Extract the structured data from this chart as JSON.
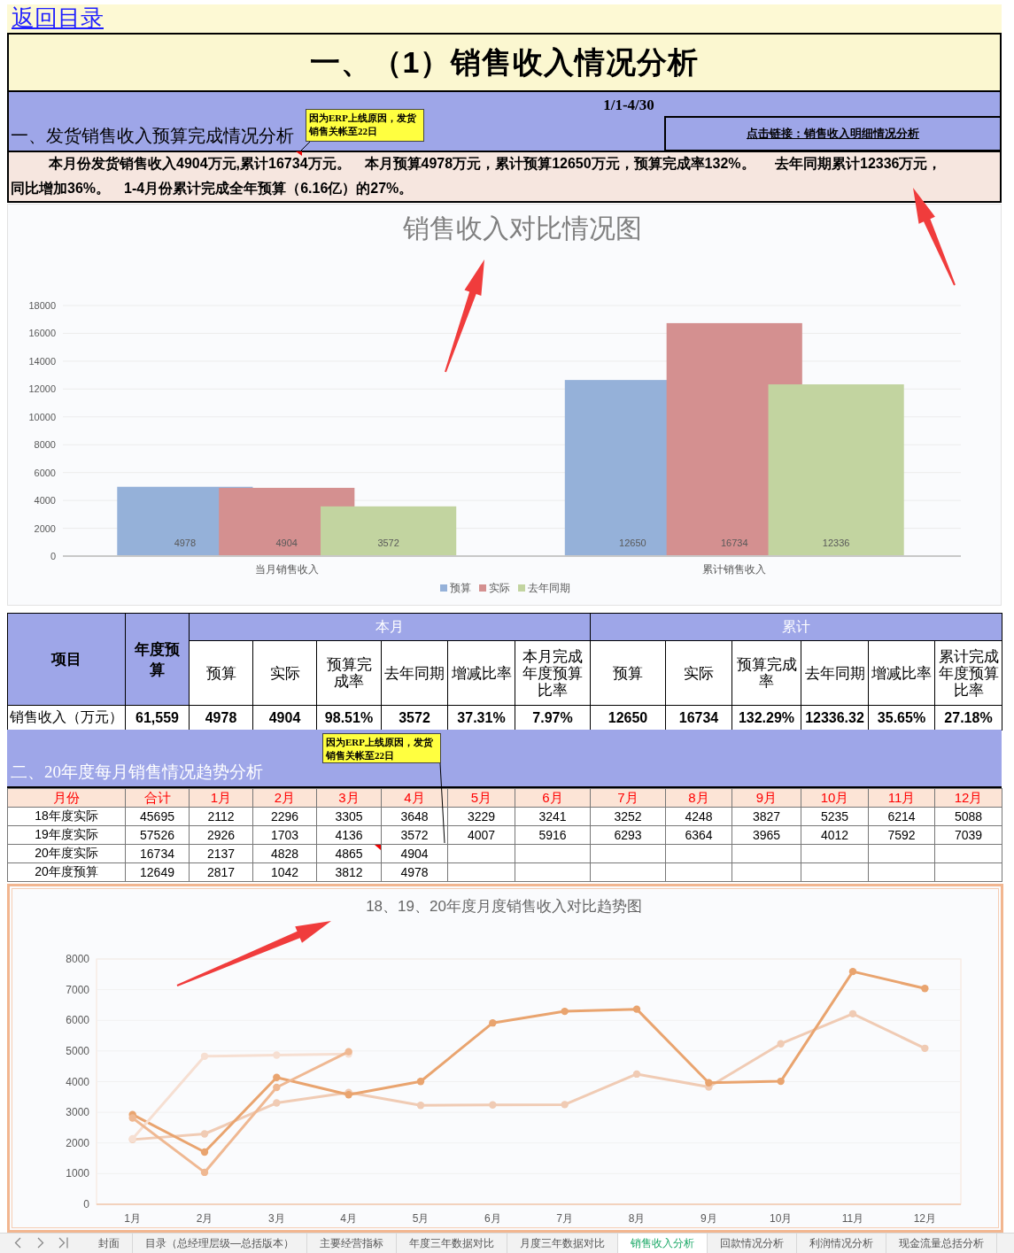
{
  "chart_data": [
    {
      "type": "other",
      "title": "一、（1）销售收入情况分析",
      "annotations": [
        "返回目录",
        "1/1-4/30",
        "一、发货销售收入预算完成情况分析",
        "点击链接：销售收入明细情况分析",
        "本月份发货销售收入4904万元,累计16734万元。　本月预算4978万元，累计预算12650万元，预算完成率132%。 去年同期累计12336万元，同比增加36%。　1-4月份累计完成全年预算（6.16亿）的27%。",
        "因为ERP上线原因，发货销售关帐至22日"
      ]
    },
    {
      "type": "bar",
      "title": "销售收入对比情况图",
      "categories": [
        "当月销售收入",
        "累计销售收入"
      ],
      "series": [
        {
          "name": "预算",
          "color": "#95b1d9",
          "values": [
            4978,
            12650
          ],
          "value_labels": [
            "4978",
            "12650"
          ]
        },
        {
          "name": "实际",
          "color": "#d49090",
          "values": [
            4904,
            16734
          ],
          "value_labels": [
            "4904",
            "16734"
          ]
        },
        {
          "name": "去年同期",
          "color": "#c2d4a0",
          "values": [
            3572,
            12336
          ],
          "value_labels": [
            "3572",
            "12336"
          ]
        }
      ],
      "ylim": [
        0,
        18000
      ],
      "yticks": [
        0,
        2000,
        4000,
        6000,
        8000,
        10000,
        12000,
        14000,
        16000,
        18000
      ],
      "grid": "y",
      "legend": "bottom"
    },
    {
      "type": "other",
      "categories": [
        "年度预算",
        "预算",
        "实际",
        "预算完成率",
        "去年同期",
        "增减比率",
        "本月完成年度预算比率",
        "预算",
        "实际",
        "预算完成率",
        "去年同期",
        "增减比率",
        "累计完成年度预算比率"
      ],
      "series": [
        {
          "name": "销售收入（万元）",
          "values": [
            61559,
            4978,
            4904,
            98.51,
            3572,
            37.31,
            7.97,
            12650,
            16734,
            132.29,
            12336.32,
            35.65,
            27.18
          ],
          "value_labels": [
            "61,559",
            "4978",
            "4904",
            "98.51%",
            "3572",
            "37.31%",
            "7.97%",
            "12650",
            "16734",
            "132.29%",
            "12336.32",
            "35.65%",
            "27.18%"
          ]
        }
      ],
      "annotations": [
        "项目",
        "本月",
        "累计"
      ]
    },
    {
      "type": "other",
      "title": "二、20年度每月销售情况趋势分析",
      "xlabel": "月份",
      "categories": [
        "合计",
        "1月",
        "2月",
        "3月",
        "4月",
        "5月",
        "6月",
        "7月",
        "8月",
        "9月",
        "10月",
        "11月",
        "12月"
      ],
      "series": [
        {
          "name": "18年度实际",
          "values": [
            45695,
            2112,
            2296,
            3305,
            3648,
            3229,
            3241,
            3252,
            4248,
            3827,
            5235,
            6214,
            5088
          ]
        },
        {
          "name": "19年度实际",
          "values": [
            57526,
            2926,
            1703,
            4136,
            3572,
            4007,
            5916,
            6293,
            6364,
            3965,
            4012,
            7592,
            7039
          ]
        },
        {
          "name": "20年度实际",
          "values": [
            16734,
            2137,
            4828,
            4865,
            4904,
            null,
            null,
            null,
            null,
            null,
            null,
            null,
            null
          ]
        },
        {
          "name": "20年度预算",
          "values": [
            12649,
            2817,
            1042,
            3812,
            4978,
            null,
            null,
            null,
            null,
            null,
            null,
            null,
            null
          ]
        }
      ],
      "data_labels": true,
      "annotations": [
        "因为ERP上线原因，发货销售关帐至22日"
      ]
    },
    {
      "type": "line",
      "title": "18、19、20年度月度销售收入对比趋势图",
      "categories": [
        "1月",
        "2月",
        "3月",
        "4月",
        "5月",
        "6月",
        "7月",
        "8月",
        "9月",
        "10月",
        "11月",
        "12月"
      ],
      "series": [
        {
          "color": "#f0cbb4",
          "values": [
            2112,
            2296,
            3305,
            3648,
            3229,
            3241,
            3252,
            4248,
            3827,
            5235,
            6214,
            5088
          ]
        },
        {
          "color": "#e9a46f",
          "values": [
            2926,
            1703,
            4136,
            3572,
            4007,
            5916,
            6293,
            6364,
            3965,
            4012,
            7592,
            7039
          ]
        },
        {
          "color": "#f6dfd2",
          "values": [
            2137,
            4828,
            4865,
            4904,
            null,
            null,
            null,
            null,
            null,
            null,
            null,
            null
          ]
        },
        {
          "color": "#efb892",
          "values": [
            2817,
            1042,
            3812,
            4978,
            null,
            null,
            null,
            null,
            null,
            null,
            null,
            null
          ]
        }
      ],
      "ylim": [
        0,
        8000
      ],
      "yticks": [
        0,
        1000,
        2000,
        3000,
        4000,
        5000,
        6000,
        7000,
        8000
      ],
      "grid": "y",
      "marker": "circle"
    },
    {
      "type": "other",
      "annotations": [
        "封面",
        "目录（总经理层级—总括版本）",
        "主要经营指标",
        "年度三年数据对比",
        "月度三年数据对比",
        "销售收入分析",
        "回款情况分析",
        "利润情况分析",
        "现金流量总括分析"
      ]
    }
  ]
}
